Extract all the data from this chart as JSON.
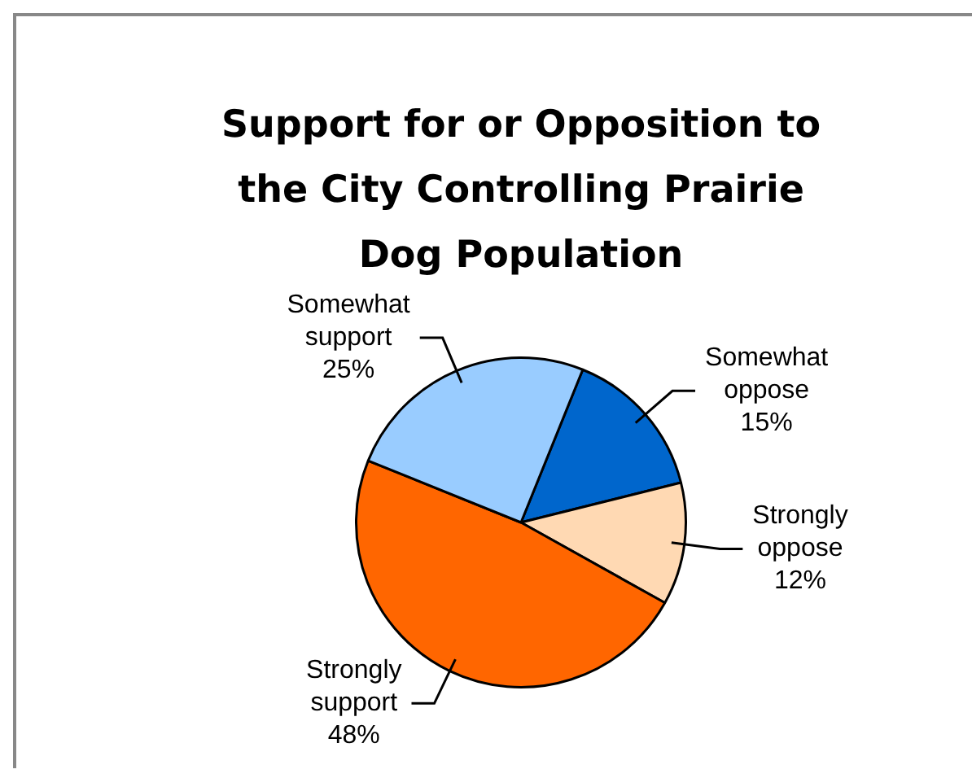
{
  "chart_data": {
    "type": "pie",
    "title": "Support for or Opposition to the City Controlling Prairie Dog Population",
    "categories": [
      "Somewhat oppose",
      "Strongly oppose",
      "Strongly support",
      "Somewhat support"
    ],
    "values": [
      15,
      12,
      48,
      25
    ],
    "colors": [
      "#0066cc",
      "#ffd9b3",
      "#ff6600",
      "#99ccff"
    ],
    "value_labels": [
      "15%",
      "12%",
      "48%",
      "25%"
    ],
    "legend": false
  }
}
